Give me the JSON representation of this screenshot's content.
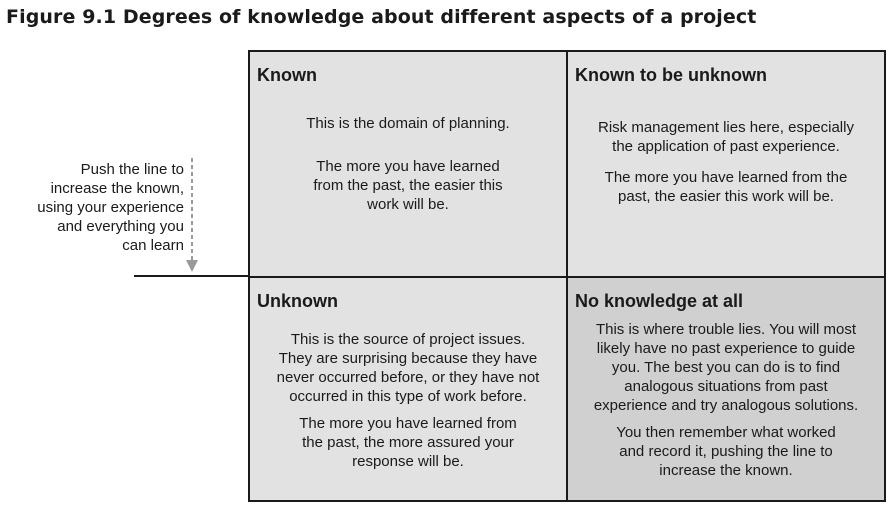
{
  "figure": {
    "title": "Figure 9.1  Degrees of knowledge about different aspects of a project"
  },
  "side_note": {
    "text": "Push the line to\nincrease the known,\nusing your experience\nand everything you\ncan learn"
  },
  "quadrants": {
    "known": {
      "title": "Known",
      "para1": "This is the domain of planning.",
      "para2": "The more you have learned\nfrom the past, the easier this\nwork will be."
    },
    "known_unknown": {
      "title": "Known to be unknown",
      "para1": "Risk management lies here, especially\nthe application of past experience.",
      "para2": "The more you have learned from the\npast, the easier this work will be."
    },
    "unknown": {
      "title": "Unknown",
      "para1": "This is the source of project issues.\nThey are surprising because they have\nnever occurred before, or they have not\noccurred in this type of work before.",
      "para2": "The more you have learned from\nthe past, the more assured your\nresponse will be."
    },
    "no_knowledge": {
      "title": "No knowledge at all",
      "para1": "This is where trouble lies. You will most\nlikely have no past experience to guide\nyou. The best you can do is to find\nanalogous situations from past\nexperience and try analogous solutions.",
      "para2": "You then remember what worked\nand record it, pushing the line to\nincrease the known."
    }
  },
  "colors": {
    "cell_fill": "#e2e2e2",
    "cell_fill_dark": "#d0d0d0",
    "border": "#1a1a1a",
    "arrow": "#9a9a9a"
  }
}
